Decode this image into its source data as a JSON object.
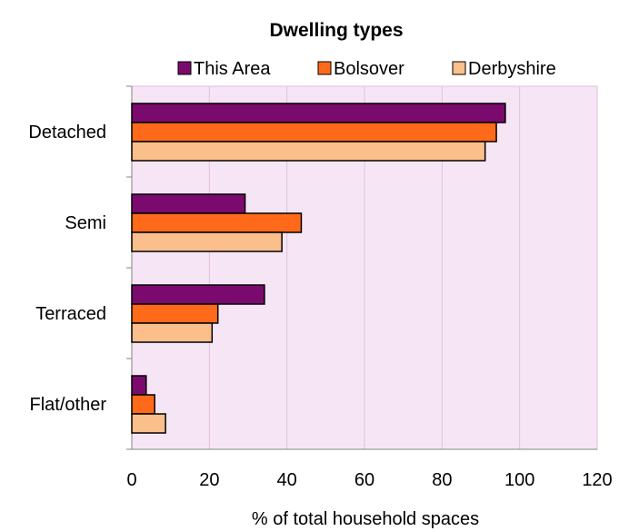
{
  "chart_data": {
    "type": "bar",
    "orientation": "horizontal",
    "title": "Dwelling types",
    "xlabel": "% of total household spaces",
    "ylabel": "",
    "categories": [
      "Detached",
      "Semi",
      "Terraced",
      "Flat/other"
    ],
    "series": [
      {
        "name": "This Area",
        "values": [
          96.3,
          29.2,
          34.2,
          3.7
        ],
        "color": "#7b0a6e"
      },
      {
        "name": "Bolsover",
        "values": [
          94.0,
          43.7,
          22.2,
          5.9
        ],
        "color": "#ff6a1a"
      },
      {
        "name": "Derbyshire",
        "values": [
          91.1,
          38.7,
          20.7,
          8.7
        ],
        "color": "#fbbf8b"
      }
    ],
    "xlim": [
      0,
      120
    ],
    "xticks": [
      "0",
      "20",
      "40",
      "60",
      "80",
      "100",
      "120"
    ],
    "grid": true,
    "legend_position": "top",
    "plot_background": "#f6e6f5",
    "gridline_color": "#e2bfe0"
  }
}
